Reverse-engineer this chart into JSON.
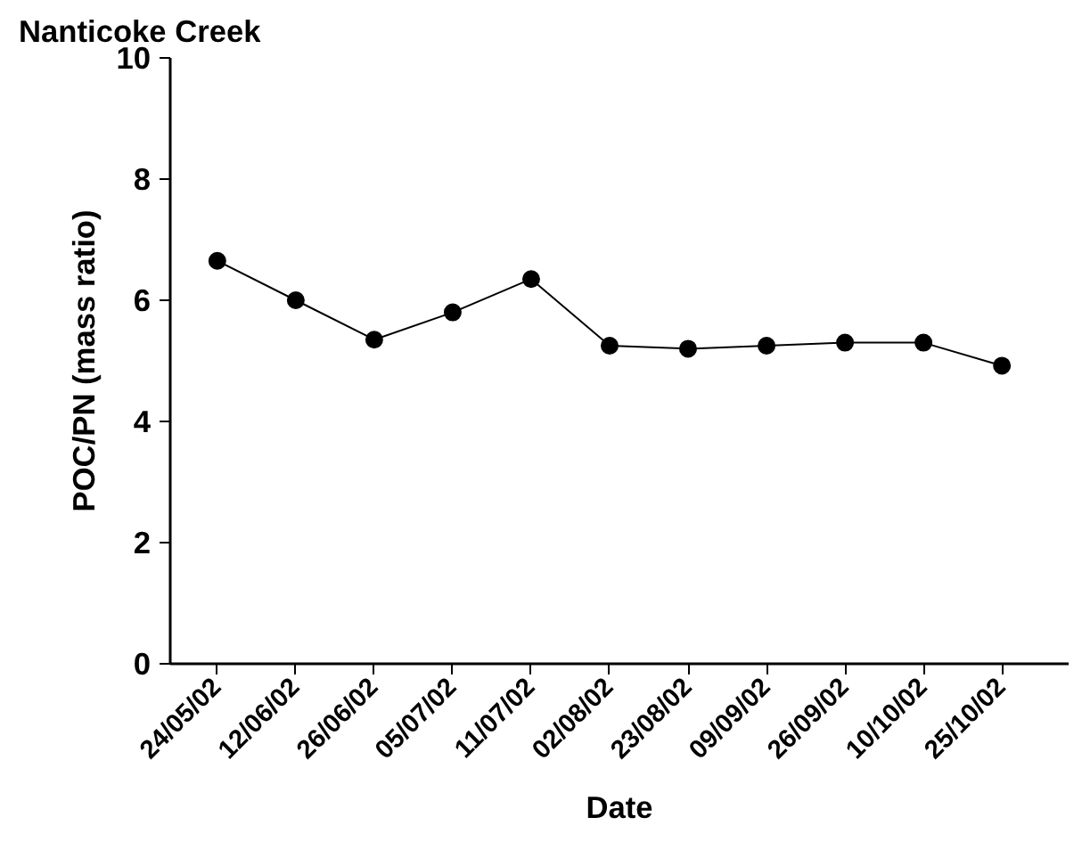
{
  "chart_data": {
    "type": "line",
    "title": "Nanticoke Creek",
    "xlabel": "Date",
    "ylabel": "POC/PN (mass ratio)",
    "categories": [
      "24/05/02",
      "12/06/02",
      "26/06/02",
      "05/07/02",
      "11/07/02",
      "02/08/02",
      "23/08/02",
      "09/09/02",
      "26/09/02",
      "10/10/02",
      "25/10/02"
    ],
    "series": [
      {
        "color": "#000000",
        "values": [
          6.65,
          6.0,
          5.35,
          5.8,
          6.35,
          5.25,
          5.2,
          5.25,
          5.3,
          5.3,
          4.92
        ]
      }
    ],
    "ylim": [
      0,
      10
    ],
    "yticks": [
      0,
      2,
      4,
      6,
      8,
      10
    ],
    "marker": "circle",
    "line_style": "solid",
    "grid": false
  }
}
